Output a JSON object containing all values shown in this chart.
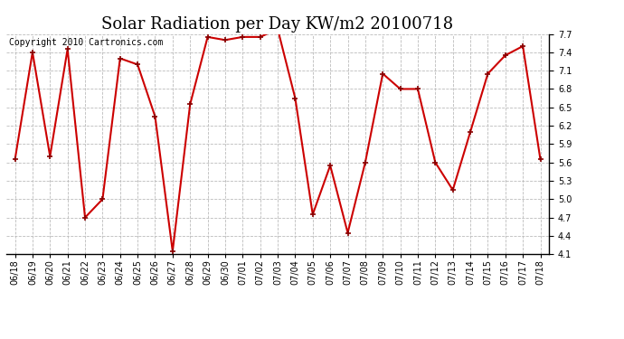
{
  "title": "Solar Radiation per Day KW/m2 20100718",
  "copyright": "Copyright 2010 Cartronics.com",
  "dates": [
    "06/18",
    "06/19",
    "06/20",
    "06/21",
    "06/22",
    "06/23",
    "06/24",
    "06/25",
    "06/26",
    "06/27",
    "06/28",
    "06/29",
    "06/30",
    "07/01",
    "07/02",
    "07/03",
    "07/04",
    "07/05",
    "07/06",
    "07/07",
    "07/08",
    "07/09",
    "07/10",
    "07/11",
    "07/12",
    "07/13",
    "07/14",
    "07/15",
    "07/16",
    "07/17",
    "07/18"
  ],
  "values": [
    5.65,
    7.4,
    5.7,
    7.45,
    4.7,
    5.0,
    7.3,
    7.2,
    6.35,
    4.15,
    6.55,
    7.65,
    7.6,
    7.65,
    7.65,
    7.78,
    6.65,
    4.75,
    5.55,
    4.45,
    5.6,
    7.05,
    6.8,
    6.8,
    5.6,
    5.15,
    6.1,
    7.05,
    7.35,
    7.5,
    5.65
  ],
  "line_color": "#cc0000",
  "marker_color": "#880000",
  "marker_style": "+",
  "marker_size": 5,
  "background_color": "#ffffff",
  "plot_bg_color": "#ffffff",
  "grid_color": "#bbbbbb",
  "ylim": [
    4.1,
    7.7
  ],
  "yticks": [
    4.1,
    4.4,
    4.7,
    5.0,
    5.3,
    5.6,
    5.9,
    6.2,
    6.5,
    6.8,
    7.1,
    7.4,
    7.7
  ],
  "title_fontsize": 13,
  "copyright_fontsize": 7,
  "tick_fontsize": 7,
  "title_font": "serif"
}
